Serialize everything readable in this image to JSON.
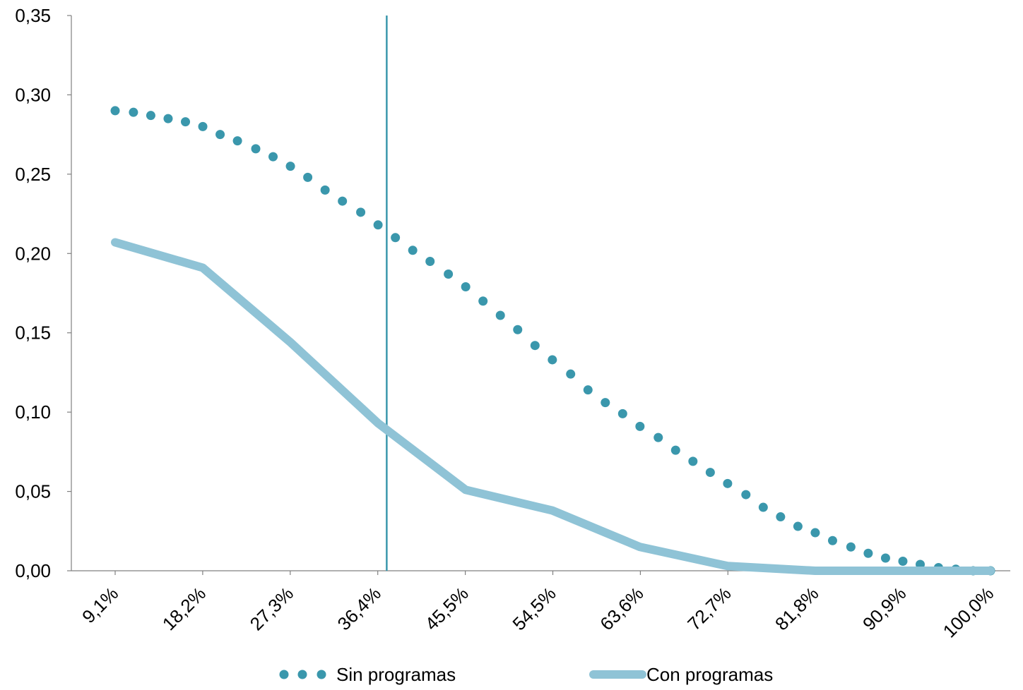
{
  "chart_data": {
    "type": "line",
    "title": "",
    "xlabel": "",
    "ylabel": "",
    "ylim": [
      0,
      0.35
    ],
    "y_ticks": [
      "0,00",
      "0,05",
      "0,10",
      "0,15",
      "0,20",
      "0,25",
      "0,30",
      "0,35"
    ],
    "x_ticks": [
      "9,1%",
      "18,2%",
      "27,3%",
      "36,4%",
      "45,5%",
      "54,5%",
      "63,6%",
      "72,7%",
      "81,8%",
      "90,9%",
      "100,0%"
    ],
    "x_range": [
      9.1,
      100.0
    ],
    "vertical_marker_x": 37.3,
    "legend_position": "bottom",
    "grid": false,
    "series": [
      {
        "name": "Sin programas",
        "style": "dotted",
        "color": "#3A97AC",
        "points": [
          [
            9.1,
            0.29
          ],
          [
            11.0,
            0.289
          ],
          [
            12.8,
            0.287
          ],
          [
            14.6,
            0.285
          ],
          [
            16.4,
            0.283
          ],
          [
            18.2,
            0.28
          ],
          [
            20.0,
            0.275
          ],
          [
            21.8,
            0.271
          ],
          [
            23.7,
            0.266
          ],
          [
            25.5,
            0.261
          ],
          [
            27.3,
            0.255
          ],
          [
            29.1,
            0.248
          ],
          [
            30.9,
            0.24
          ],
          [
            32.7,
            0.233
          ],
          [
            34.6,
            0.226
          ],
          [
            36.4,
            0.218
          ],
          [
            38.2,
            0.21
          ],
          [
            40.0,
            0.202
          ],
          [
            41.8,
            0.195
          ],
          [
            43.7,
            0.187
          ],
          [
            45.5,
            0.179
          ],
          [
            47.3,
            0.17
          ],
          [
            49.1,
            0.161
          ],
          [
            50.9,
            0.152
          ],
          [
            52.7,
            0.142
          ],
          [
            54.5,
            0.133
          ],
          [
            56.4,
            0.124
          ],
          [
            58.2,
            0.114
          ],
          [
            60.0,
            0.106
          ],
          [
            61.8,
            0.099
          ],
          [
            63.6,
            0.091
          ],
          [
            65.5,
            0.084
          ],
          [
            67.3,
            0.076
          ],
          [
            69.1,
            0.069
          ],
          [
            70.9,
            0.062
          ],
          [
            72.7,
            0.055
          ],
          [
            74.6,
            0.048
          ],
          [
            76.4,
            0.04
          ],
          [
            78.2,
            0.034
          ],
          [
            80.0,
            0.028
          ],
          [
            81.8,
            0.024
          ],
          [
            83.6,
            0.019
          ],
          [
            85.5,
            0.015
          ],
          [
            87.3,
            0.011
          ],
          [
            89.1,
            0.008
          ],
          [
            90.9,
            0.006
          ],
          [
            92.7,
            0.004
          ],
          [
            94.6,
            0.002
          ],
          [
            96.4,
            0.001
          ],
          [
            98.2,
            0.0
          ],
          [
            100.0,
            0.0
          ]
        ]
      },
      {
        "name": "Con programas",
        "style": "solid",
        "color": "#8FC3D6",
        "points": [
          [
            9.1,
            0.207
          ],
          [
            18.2,
            0.191
          ],
          [
            27.3,
            0.144
          ],
          [
            36.4,
            0.093
          ],
          [
            45.5,
            0.051
          ],
          [
            54.5,
            0.038
          ],
          [
            63.6,
            0.015
          ],
          [
            72.7,
            0.003
          ],
          [
            81.8,
            0.0
          ],
          [
            90.9,
            0.0
          ],
          [
            100.0,
            0.0
          ]
        ]
      }
    ]
  }
}
